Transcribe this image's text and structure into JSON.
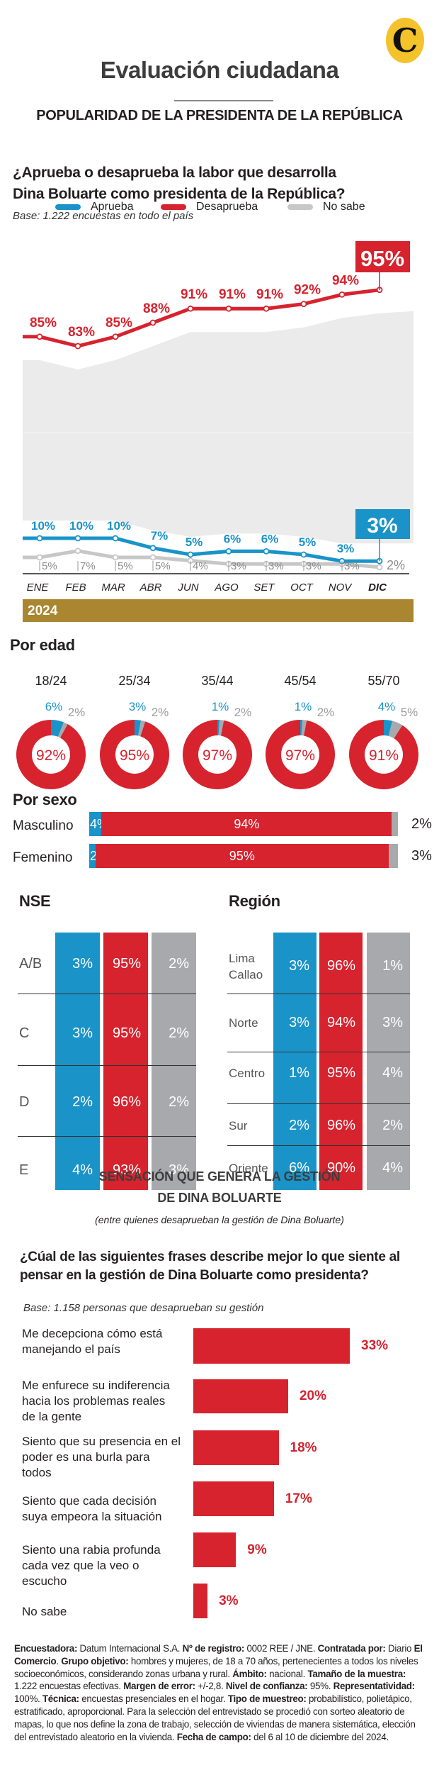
{
  "header": {
    "logo_letter": "C",
    "title": "Evaluación ciudadana",
    "section_title": "POPULARIDAD DE LA PRESIDENTA DE LA REPÚBLICA",
    "question_line1": "¿Aprueba o desaprueba la labor que desarrolla",
    "question_line2": "Dina Boluarte como presidenta de la República?",
    "base": "Base: 1.222 encuestas en todo el país"
  },
  "colors": {
    "aprueba": "#1a93c8",
    "desaprueba": "#d6232e",
    "no_sabe": "#c7c7c7",
    "no_sabe_text": "#8c8c8c",
    "grid_gray": "#a7a9ac",
    "area": "#ebebeb",
    "year_bar": "#a9862f",
    "logo": "#f4c22b"
  },
  "legend": [
    {
      "label": "Aprueba",
      "key": "aprueba"
    },
    {
      "label": "Desaprueba",
      "key": "desaprueba"
    },
    {
      "label": "No sabe",
      "key": "no_sabe"
    }
  ],
  "year_label": "2024",
  "chart_data": [
    {
      "type": "line",
      "title": "¿Aprueba o desaprueba la labor que desarrolla Dina Boluarte como presidenta de la República?",
      "x": [
        "ENE",
        "FEB",
        "MAR",
        "ABR",
        "JUN",
        "AGO",
        "SET",
        "OCT",
        "NOV",
        "DIC"
      ],
      "highlight_x": "DIC",
      "series": [
        {
          "name": "Desaprueba",
          "values": [
            85,
            83,
            85,
            88,
            91,
            91,
            91,
            92,
            94,
            95
          ],
          "labels": [
            "85%",
            "83%",
            "85%",
            "88%",
            "91%",
            "91%",
            "91%",
            "92%",
            "94%",
            "95%"
          ]
        },
        {
          "name": "Aprueba",
          "values": [
            10,
            10,
            10,
            7,
            5,
            6,
            6,
            5,
            3,
            3
          ],
          "labels": [
            "10%",
            "10%",
            "10%",
            "7%",
            "5%",
            "6%",
            "6%",
            "5%",
            "3%",
            "3%"
          ]
        },
        {
          "name": "No sabe",
          "values": [
            5,
            7,
            5,
            5,
            4,
            3,
            3,
            3,
            3,
            2
          ],
          "labels": [
            "5%",
            "7%",
            "5%",
            "5%",
            "4%",
            "3%",
            "3%",
            "3%",
            "3%",
            "2%"
          ]
        }
      ],
      "xlabel": "2024",
      "ylabel": "",
      "ylim": [
        0,
        100
      ],
      "grid": false,
      "legend": "top"
    },
    {
      "type": "pie",
      "title": "Por edad",
      "categories": [
        "18/24",
        "25/34",
        "35/44",
        "45/54",
        "55/70"
      ],
      "series": [
        {
          "name": "Aprueba",
          "values": [
            6,
            3,
            1,
            1,
            4
          ]
        },
        {
          "name": "No sabe",
          "values": [
            2,
            2,
            2,
            2,
            5
          ]
        },
        {
          "name": "Desaprueba",
          "values": [
            92,
            95,
            97,
            97,
            91
          ]
        }
      ]
    },
    {
      "type": "bar",
      "title": "Por sexo",
      "orientation": "horizontal-stacked",
      "categories": [
        "Masculino",
        "Femenino"
      ],
      "series": [
        {
          "name": "Aprueba",
          "values": [
            4,
            2
          ]
        },
        {
          "name": "Desaprueba",
          "values": [
            94,
            95
          ]
        },
        {
          "name": "No sabe",
          "values": [
            2,
            3
          ]
        }
      ]
    },
    {
      "type": "table",
      "title": "NSE",
      "categories": [
        "A/B",
        "C",
        "D",
        "E"
      ],
      "series": [
        {
          "name": "Aprueba",
          "values": [
            3,
            3,
            2,
            4
          ]
        },
        {
          "name": "Desaprueba",
          "values": [
            95,
            95,
            96,
            93
          ]
        },
        {
          "name": "No sabe",
          "values": [
            2,
            2,
            2,
            3
          ]
        }
      ]
    },
    {
      "type": "table",
      "title": "Región",
      "categories": [
        "Lima Callao",
        "Norte",
        "Centro",
        "Sur",
        "Oriente"
      ],
      "series": [
        {
          "name": "Aprueba",
          "values": [
            3,
            3,
            1,
            2,
            6
          ]
        },
        {
          "name": "Desaprueba",
          "values": [
            96,
            94,
            95,
            96,
            90
          ]
        },
        {
          "name": "No sabe",
          "values": [
            1,
            3,
            4,
            2,
            4
          ]
        }
      ]
    },
    {
      "type": "bar",
      "title": "SENSACIÓN QUE GENERA LA GESTIÓN DE DINA BOLUARTE",
      "orientation": "horizontal",
      "categories": [
        "Me decepciona cómo está manejando el país",
        "Me enfurece su indiferencia hacia los problemas reales de la gente",
        "Siento que su presencia en el poder es una burla para todos",
        "Siento que cada decisión suya empeora la situación",
        "Siento una rabia profunda cada vez que la veo o escucho",
        "No sabe"
      ],
      "values": [
        33,
        20,
        18,
        17,
        9,
        3
      ],
      "xlim": [
        0,
        33
      ]
    }
  ],
  "age_section": {
    "title": "Por edad",
    "groups": [
      {
        "label": "18/24",
        "aprueba": "6%",
        "no_sabe": "2%",
        "desaprueba": "92%"
      },
      {
        "label": "25/34",
        "aprueba": "3%",
        "no_sabe": "2%",
        "desaprueba": "95%"
      },
      {
        "label": "35/44",
        "aprueba": "1%",
        "no_sabe": "2%",
        "desaprueba": "97%"
      },
      {
        "label": "45/54",
        "aprueba": "1%",
        "no_sabe": "2%",
        "desaprueba": "97%"
      },
      {
        "label": "55/70",
        "aprueba": "4%",
        "no_sabe": "5%",
        "desaprueba": "91%"
      }
    ]
  },
  "sex_section": {
    "title": "Por sexo",
    "rows": [
      {
        "label": "Masculino",
        "aprueba": "4%",
        "desaprueba": "94%",
        "no_sabe": "2%"
      },
      {
        "label": "Femenino",
        "aprueba": "2%",
        "desaprueba": "95%",
        "no_sabe": "3%"
      }
    ]
  },
  "nse_section": {
    "title": "NSE",
    "rows": [
      {
        "label": "A/B",
        "aprueba": "3%",
        "desaprueba": "95%",
        "no_sabe": "2%"
      },
      {
        "label": "C",
        "aprueba": "3%",
        "desaprueba": "95%",
        "no_sabe": "2%"
      },
      {
        "label": "D",
        "aprueba": "2%",
        "desaprueba": "96%",
        "no_sabe": "2%"
      },
      {
        "label": "E",
        "aprueba": "4%",
        "desaprueba": "93%",
        "no_sabe": "3%"
      }
    ]
  },
  "region_section": {
    "title": "Región",
    "rows": [
      {
        "label": "Lima\nCallao",
        "aprueba": "3%",
        "desaprueba": "96%",
        "no_sabe": "1%"
      },
      {
        "label": "Norte",
        "aprueba": "3%",
        "desaprueba": "94%",
        "no_sabe": "3%"
      },
      {
        "label": "Centro",
        "aprueba": "1%",
        "desaprueba": "95%",
        "no_sabe": "4%"
      },
      {
        "label": "Sur",
        "aprueba": "2%",
        "desaprueba": "96%",
        "no_sabe": "2%"
      },
      {
        "label": "Oriente",
        "aprueba": "6%",
        "desaprueba": "90%",
        "no_sabe": "4%"
      }
    ]
  },
  "sensation_section": {
    "title_line1": "SENSACIÓN QUE GENERA LA GESTIÓN",
    "title_line2": "DE DINA BOLUARTE",
    "subtitle": "(entre quienes desaprueban la gestión de Dina Boluarte)",
    "question": "¿Cúal de las siguientes frases describe mejor lo que siente al pensar en la gestión de Dina Boluarte como presidenta?",
    "base": "Base: 1.158 personas que desaprueban su gestión",
    "items": [
      {
        "label": "Me decepciona cómo está manejando el país",
        "value": "33%"
      },
      {
        "label": "Me enfurece su indiferencia hacia los problemas reales de la gente",
        "value": "20%"
      },
      {
        "label": "Siento que su presencia en el poder es una burla para todos",
        "value": "18%"
      },
      {
        "label": "Siento que cada decisión suya empeora la situación",
        "value": "17%"
      },
      {
        "label": "Siento una rabia profunda cada vez que la veo o escucho",
        "value": "9%"
      },
      {
        "label": "No sabe",
        "value": "3%"
      }
    ]
  },
  "footnote": [
    {
      "b": "Encuestadora:",
      "t": " Datum Internacional S.A. "
    },
    {
      "b": "Nº de registro:",
      "t": " 0002 REE / JNE. "
    },
    {
      "b": "Contratada por:",
      "t": " Diario "
    },
    {
      "b": "El Comercio",
      "t": ". "
    },
    {
      "b": "Grupo objetivo:",
      "t": " hombres y mujeres, de 18 a 70 años, pertenecientes a todos los niveles socioeconómicos, considerando zonas urbana y rural. "
    },
    {
      "b": "Ámbito:",
      "t": " nacional. "
    },
    {
      "b": "Tamaño de la muestra:",
      "t": " 1.222 encuestas efectivas. "
    },
    {
      "b": "Margen de error:",
      "t": "  +/-2,8. "
    },
    {
      "b": "Nivel de confianza:",
      "t": " 95%. "
    },
    {
      "b": "Representatividad:",
      "t": " 100%. "
    },
    {
      "b": "Técnica:",
      "t": " encuestas presenciales en el hogar. "
    },
    {
      "b": "Tipo de muestreo:",
      "t": " probabilístico, polietápico, estratificado, aproporcional. Para la selección del entrevistado se procedió con sorteo aleatorio de mapas, lo que nos define la zona de trabajo, selección de viviendas de manera sistemática, elección del entrevistado aleatorio en la vivienda. "
    },
    {
      "b": "Fecha de campo:",
      "t": " del 6 al 10 de diciembre del 2024."
    }
  ]
}
